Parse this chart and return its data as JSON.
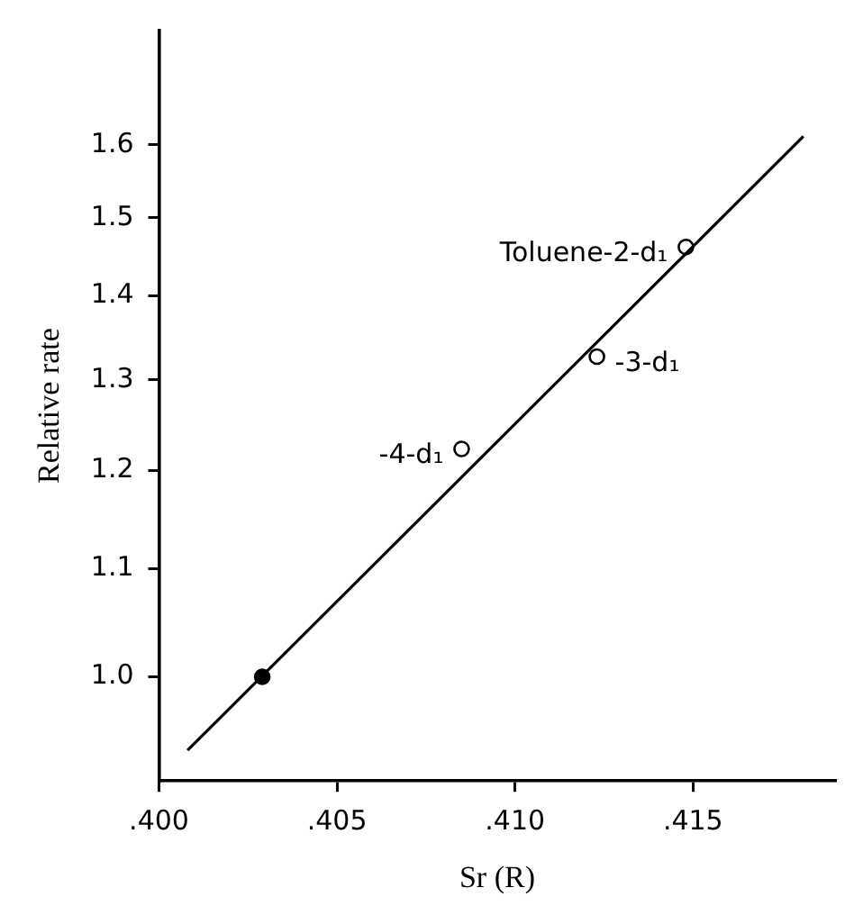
{
  "chart_data": {
    "type": "scatter",
    "xlabel": "Sr (R)",
    "ylabel": "Relative rate",
    "log": "y",
    "grid": false,
    "legend": false,
    "xlim": [
      0.4,
      0.419
    ],
    "xticks": [
      {
        "value": 0.4,
        "label": ".400"
      },
      {
        "value": 0.405,
        "label": ".405"
      },
      {
        "value": 0.41,
        "label": ".410"
      },
      {
        "value": 0.415,
        "label": ".415"
      }
    ],
    "ylim": [
      0.912,
      1.77
    ],
    "yticks": [
      {
        "value": 1.0,
        "label": "1.0"
      },
      1.1,
      1.2,
      1.3,
      1.4,
      1.5,
      1.6
    ],
    "series": [
      {
        "marker": "circle",
        "color": "#000000",
        "colors": [
          "#000000",
          "#ffffff",
          "#ffffff",
          "#ffffff"
        ],
        "x": [
          0.4029,
          0.4085,
          0.4123,
          0.4148
        ],
        "values": [
          1.0,
          1.223,
          1.327,
          1.462
        ]
      },
      {
        "type": "line",
        "marker": "none",
        "color": "#000000",
        "x": [
          0.4008,
          0.4181
        ],
        "values": [
          0.937,
          1.612
        ]
      }
    ],
    "annotations": [
      {
        "text": "-4-d₁",
        "x": 0.4085,
        "y": 1.223
      },
      {
        "text": "-3-d₁",
        "x": 0.4123,
        "y": 1.327
      },
      {
        "text": "Toluene-2-d₁",
        "x": 0.4148,
        "y": 1.462
      }
    ]
  }
}
